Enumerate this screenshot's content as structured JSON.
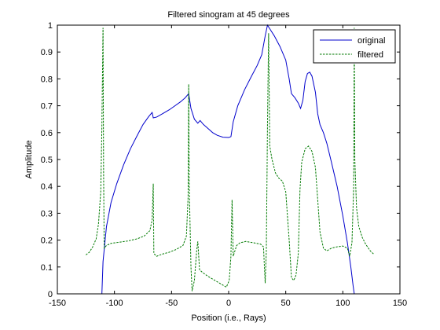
{
  "chart_data": {
    "type": "line",
    "title": "Filtered sinogram at 45 degrees",
    "xlabel": "Position (i.e., Rays)",
    "ylabel": "Amplitude",
    "xlim": [
      -150,
      150
    ],
    "ylim": [
      0,
      1
    ],
    "xticks": [
      "-150",
      "-100",
      "-50",
      "0",
      "50",
      "100",
      "150"
    ],
    "yticks": [
      "0",
      "0.1",
      "0.2",
      "0.3",
      "0.4",
      "0.5",
      "0.6",
      "0.7",
      "0.8",
      "0.9",
      "1"
    ],
    "grid": false,
    "legend_position": "top-right",
    "series": [
      {
        "name": "original",
        "color": "#0000cc",
        "style": "solid",
        "points": [
          [
            -111,
            0
          ],
          [
            -110,
            0.12
          ],
          [
            -107,
            0.25
          ],
          [
            -103,
            0.34
          ],
          [
            -98,
            0.41
          ],
          [
            -92,
            0.48
          ],
          [
            -86,
            0.54
          ],
          [
            -80,
            0.59
          ],
          [
            -75,
            0.63
          ],
          [
            -70,
            0.66
          ],
          [
            -67,
            0.675
          ],
          [
            -66,
            0.655
          ],
          [
            -63,
            0.658
          ],
          [
            -58,
            0.67
          ],
          [
            -52,
            0.685
          ],
          [
            -47,
            0.7
          ],
          [
            -42,
            0.715
          ],
          [
            -38,
            0.73
          ],
          [
            -35,
            0.745
          ],
          [
            -33,
            0.69
          ],
          [
            -30,
            0.65
          ],
          [
            -27,
            0.635
          ],
          [
            -25,
            0.645
          ],
          [
            -22,
            0.63
          ],
          [
            -18,
            0.615
          ],
          [
            -14,
            0.6
          ],
          [
            -10,
            0.59
          ],
          [
            -5,
            0.583
          ],
          [
            0,
            0.582
          ],
          [
            2,
            0.585
          ],
          [
            4,
            0.64
          ],
          [
            8,
            0.7
          ],
          [
            14,
            0.76
          ],
          [
            20,
            0.81
          ],
          [
            25,
            0.85
          ],
          [
            29,
            0.89
          ],
          [
            32,
            0.96
          ],
          [
            34,
            1.0
          ],
          [
            37,
            0.98
          ],
          [
            40,
            0.96
          ],
          [
            45,
            0.92
          ],
          [
            50,
            0.87
          ],
          [
            53,
            0.8
          ],
          [
            55,
            0.745
          ],
          [
            58,
            0.73
          ],
          [
            61,
            0.71
          ],
          [
            63,
            0.69
          ],
          [
            65,
            0.72
          ],
          [
            67,
            0.79
          ],
          [
            69,
            0.82
          ],
          [
            71,
            0.825
          ],
          [
            73,
            0.81
          ],
          [
            76,
            0.75
          ],
          [
            78,
            0.67
          ],
          [
            80,
            0.63
          ],
          [
            83,
            0.6
          ],
          [
            86,
            0.56
          ],
          [
            90,
            0.49
          ],
          [
            95,
            0.4
          ],
          [
            100,
            0.29
          ],
          [
            104,
            0.19
          ],
          [
            107,
            0.1
          ],
          [
            109,
            0.03
          ],
          [
            110,
            0
          ]
        ]
      },
      {
        "name": "filtered",
        "color": "#007a00",
        "style": "dashed",
        "points": [
          [
            -125,
            0.145
          ],
          [
            -122,
            0.155
          ],
          [
            -119,
            0.175
          ],
          [
            -116,
            0.205
          ],
          [
            -114,
            0.26
          ],
          [
            -112,
            0.38
          ],
          [
            -111,
            0.62
          ],
          [
            -110,
            0.99
          ],
          [
            -109.5,
            0.45
          ],
          [
            -109,
            0.17
          ],
          [
            -107,
            0.18
          ],
          [
            -103,
            0.188
          ],
          [
            -96,
            0.192
          ],
          [
            -88,
            0.197
          ],
          [
            -80,
            0.205
          ],
          [
            -74,
            0.215
          ],
          [
            -69,
            0.235
          ],
          [
            -67,
            0.275
          ],
          [
            -66,
            0.41
          ],
          [
            -65.5,
            0.15
          ],
          [
            -63,
            0.14
          ],
          [
            -58,
            0.148
          ],
          [
            -52,
            0.155
          ],
          [
            -46,
            0.165
          ],
          [
            -40,
            0.18
          ],
          [
            -37,
            0.215
          ],
          [
            -35.5,
            0.36
          ],
          [
            -35,
            0.78
          ],
          [
            -34.5,
            0.4
          ],
          [
            -33,
            0.1
          ],
          [
            -32,
            0.01
          ],
          [
            -30,
            0.05
          ],
          [
            -28,
            0.16
          ],
          [
            -27,
            0.195
          ],
          [
            -25.5,
            0.09
          ],
          [
            -23,
            0.08
          ],
          [
            -18,
            0.065
          ],
          [
            -12,
            0.05
          ],
          [
            -6,
            0.035
          ],
          [
            -2,
            0.025
          ],
          [
            0.5,
            0.05
          ],
          [
            2,
            0.14
          ],
          [
            3,
            0.35
          ],
          [
            4,
            0.14
          ],
          [
            7,
            0.18
          ],
          [
            10,
            0.19
          ],
          [
            15,
            0.195
          ],
          [
            22,
            0.19
          ],
          [
            28,
            0.185
          ],
          [
            30.5,
            0.175
          ],
          [
            32,
            0.04
          ],
          [
            33,
            0.16
          ],
          [
            34,
            0.62
          ],
          [
            35,
            0.97
          ],
          [
            36,
            0.55
          ],
          [
            38,
            0.5
          ],
          [
            41,
            0.45
          ],
          [
            44,
            0.43
          ],
          [
            47,
            0.42
          ],
          [
            50,
            0.38
          ],
          [
            53,
            0.2
          ],
          [
            55,
            0.06
          ],
          [
            57,
            0.05
          ],
          [
            59,
            0.07
          ],
          [
            61,
            0.15
          ],
          [
            62.5,
            0.39
          ],
          [
            64,
            0.49
          ],
          [
            67,
            0.54
          ],
          [
            70,
            0.55
          ],
          [
            73,
            0.53
          ],
          [
            76,
            0.47
          ],
          [
            78,
            0.35
          ],
          [
            80,
            0.23
          ],
          [
            83,
            0.17
          ],
          [
            86,
            0.16
          ],
          [
            90,
            0.17
          ],
          [
            95,
            0.175
          ],
          [
            100,
            0.178
          ],
          [
            104,
            0.17
          ],
          [
            106,
            0.14
          ],
          [
            108,
            0.19
          ],
          [
            109.5,
            0.4
          ],
          [
            110,
            0.99
          ],
          [
            110.5,
            0.5
          ],
          [
            112,
            0.32
          ],
          [
            114,
            0.25
          ],
          [
            117,
            0.21
          ],
          [
            120,
            0.185
          ],
          [
            124,
            0.16
          ],
          [
            127,
            0.148
          ]
        ]
      }
    ]
  }
}
